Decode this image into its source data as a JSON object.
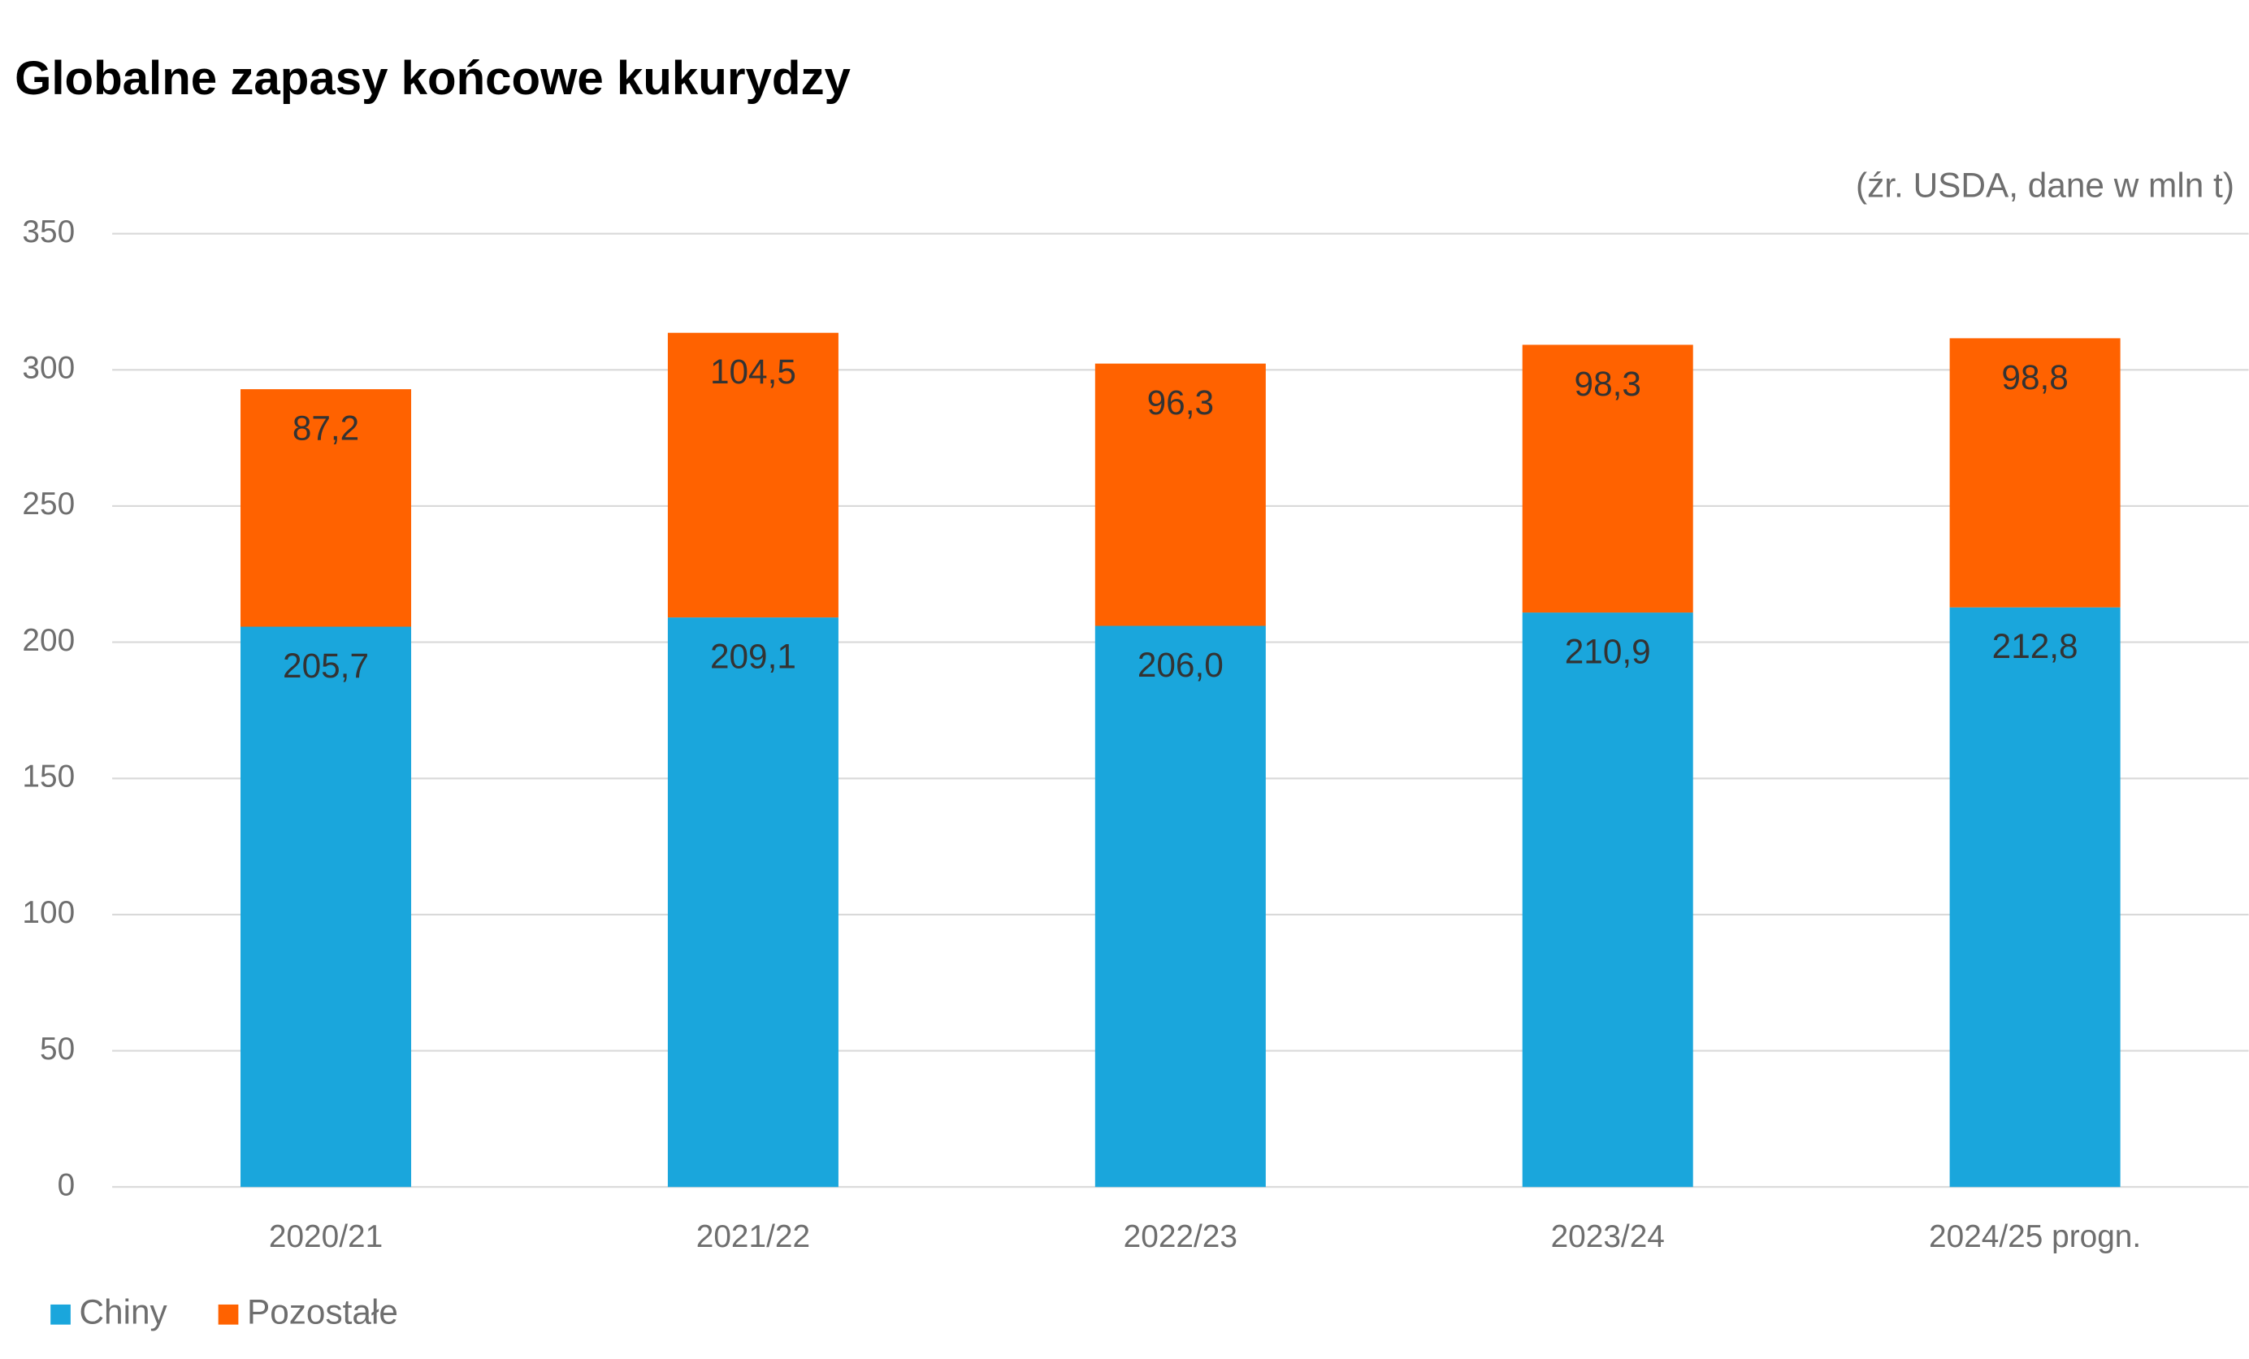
{
  "chart_data": {
    "type": "bar",
    "stacked": true,
    "title": "Globalne zapasy końcowe kukurydzy",
    "subtitle": "(źr. USDA, dane w mln t)",
    "categories": [
      "2020/21",
      "2021/22",
      "2022/23",
      "2023/24",
      "2024/25 progn."
    ],
    "series": [
      {
        "name": "Chiny",
        "color": "#1aa6dc",
        "values": [
          205.7,
          209.1,
          206.0,
          210.9,
          212.8
        ],
        "value_labels": [
          "205,7",
          "209,1",
          "206,0",
          "210,9",
          "212,8"
        ]
      },
      {
        "name": "Pozostałe",
        "color": "#ff6200",
        "values": [
          87.2,
          104.5,
          96.3,
          98.3,
          98.8
        ],
        "value_labels": [
          "87,2",
          "104,5",
          "96,3",
          "98,3",
          "98,8"
        ]
      }
    ],
    "ylim": [
      0,
      350
    ],
    "yticks": [
      0,
      50,
      100,
      150,
      200,
      250,
      300,
      350
    ],
    "grid": true
  }
}
